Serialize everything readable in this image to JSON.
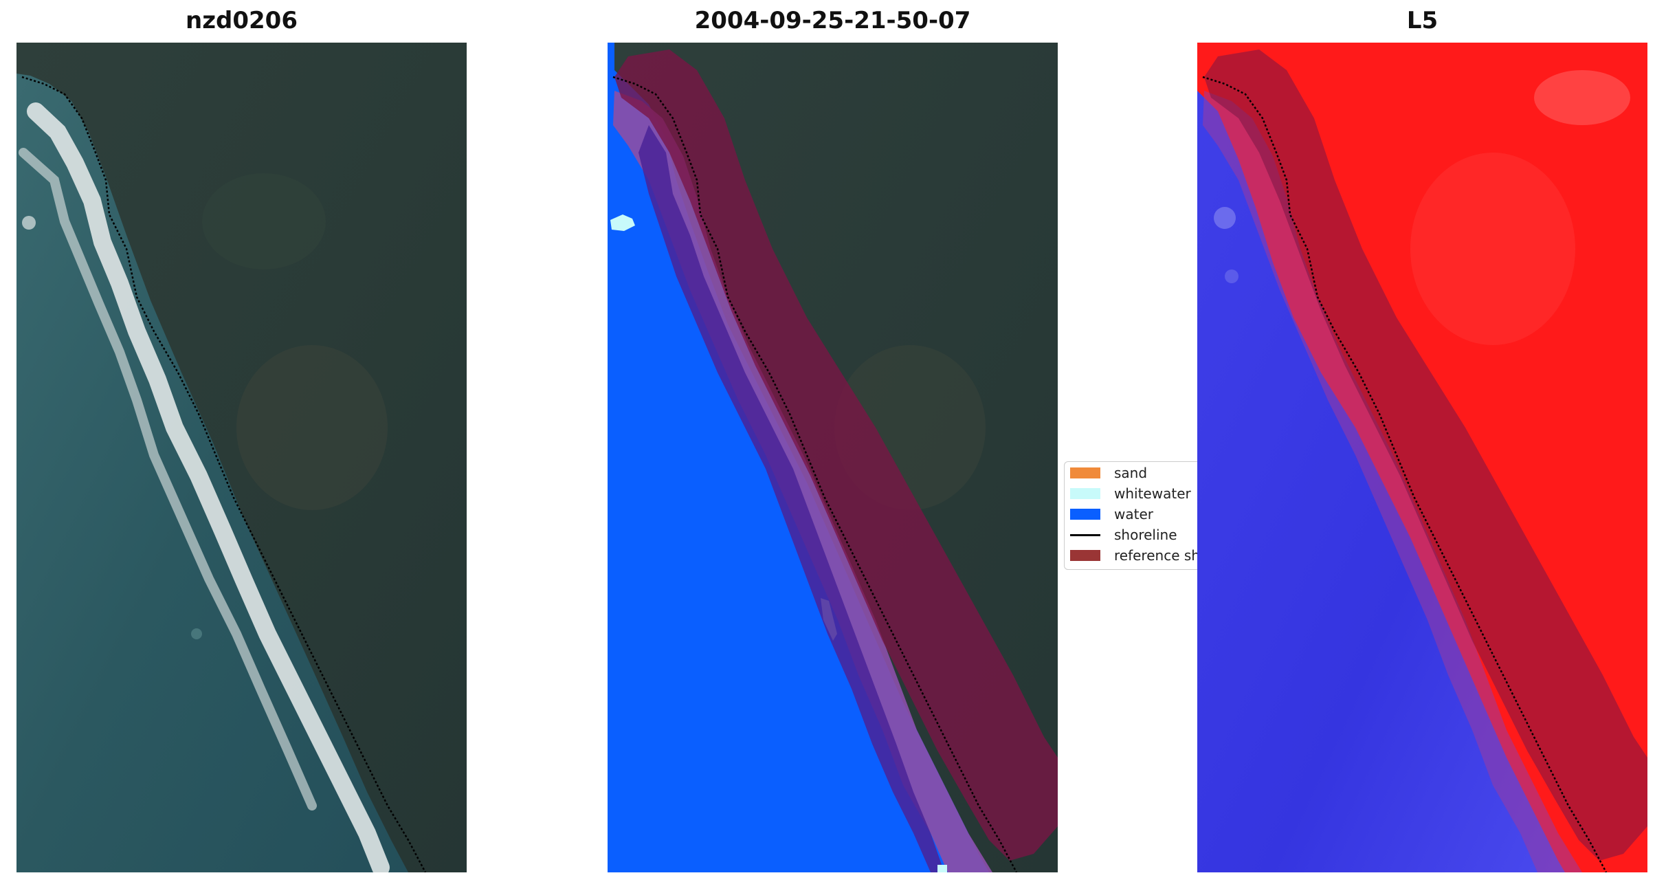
{
  "titles": {
    "left": "nzd0206",
    "center": "2004-09-25-21-50-07",
    "right": "L5"
  },
  "legend": {
    "items": [
      {
        "label": "sand",
        "kind": "patch",
        "color": "#f08a3a"
      },
      {
        "label": "whitewater",
        "kind": "patch",
        "color": "#c8fafa"
      },
      {
        "label": "water",
        "kind": "patch",
        "color": "#0a5fff"
      },
      {
        "label": "shoreline",
        "kind": "line",
        "color": "#000000"
      },
      {
        "label": "reference sh",
        "kind": "patch",
        "color": "#9a3535"
      }
    ]
  },
  "colors": {
    "land_dark": "#263a38",
    "ocean_rgb": "#2d5a63",
    "whitewater_foam": "#e6ecec",
    "classified_water": "#0a5fff",
    "buffer_overlay": "#7a1545",
    "index_positive": "#ff1a1a",
    "index_negative": "#2a2ae6",
    "shoreline": "#000000"
  }
}
